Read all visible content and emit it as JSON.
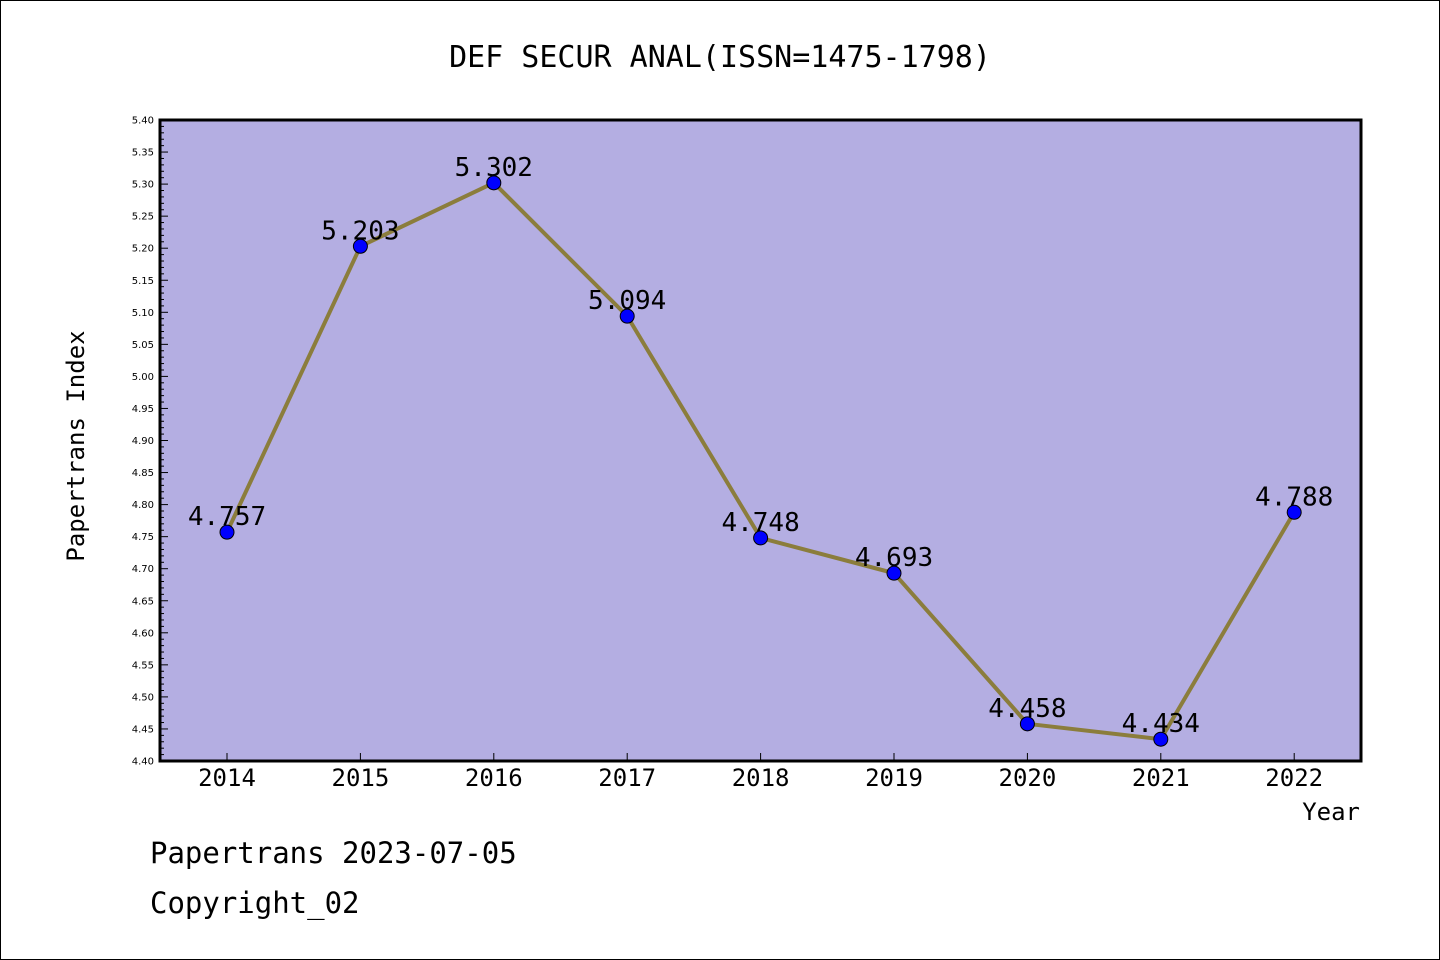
{
  "chart_data": {
    "type": "line",
    "title": "DEF SECUR ANAL(ISSN=1475-1798)",
    "xlabel": "Year",
    "ylabel": "Papertrans Index",
    "categories": [
      "2014",
      "2015",
      "2016",
      "2017",
      "2018",
      "2019",
      "2020",
      "2021",
      "2022"
    ],
    "series": [
      {
        "values": [
          4.757,
          5.203,
          5.302,
          5.094,
          4.748,
          4.693,
          4.458,
          4.434,
          4.788
        ],
        "labels": [
          "4.757",
          "5.203",
          "5.302",
          "5.094",
          "4.748",
          "4.693",
          "4.458",
          "4.434",
          "4.788"
        ]
      }
    ],
    "ylim": [
      4.4,
      5.4
    ],
    "ytick_step": 0.05,
    "yticks": [
      "4.40",
      "4.45",
      "4.50",
      "4.55",
      "4.60",
      "4.65",
      "4.70",
      "4.75",
      "4.80",
      "4.85",
      "4.90",
      "4.95",
      "5.00",
      "5.05",
      "5.10",
      "5.15",
      "5.20",
      "5.25",
      "5.30",
      "5.35",
      "5.40"
    ],
    "grid": false,
    "legend": "none",
    "colors": {
      "plot_background": "#b4aee2",
      "line": "#8b7d3c",
      "marker": "#0000ff",
      "axis": "#000000"
    }
  },
  "footer": {
    "date_line": "Papertrans 2023-07-05",
    "copyright_line": "Copyright_02"
  }
}
